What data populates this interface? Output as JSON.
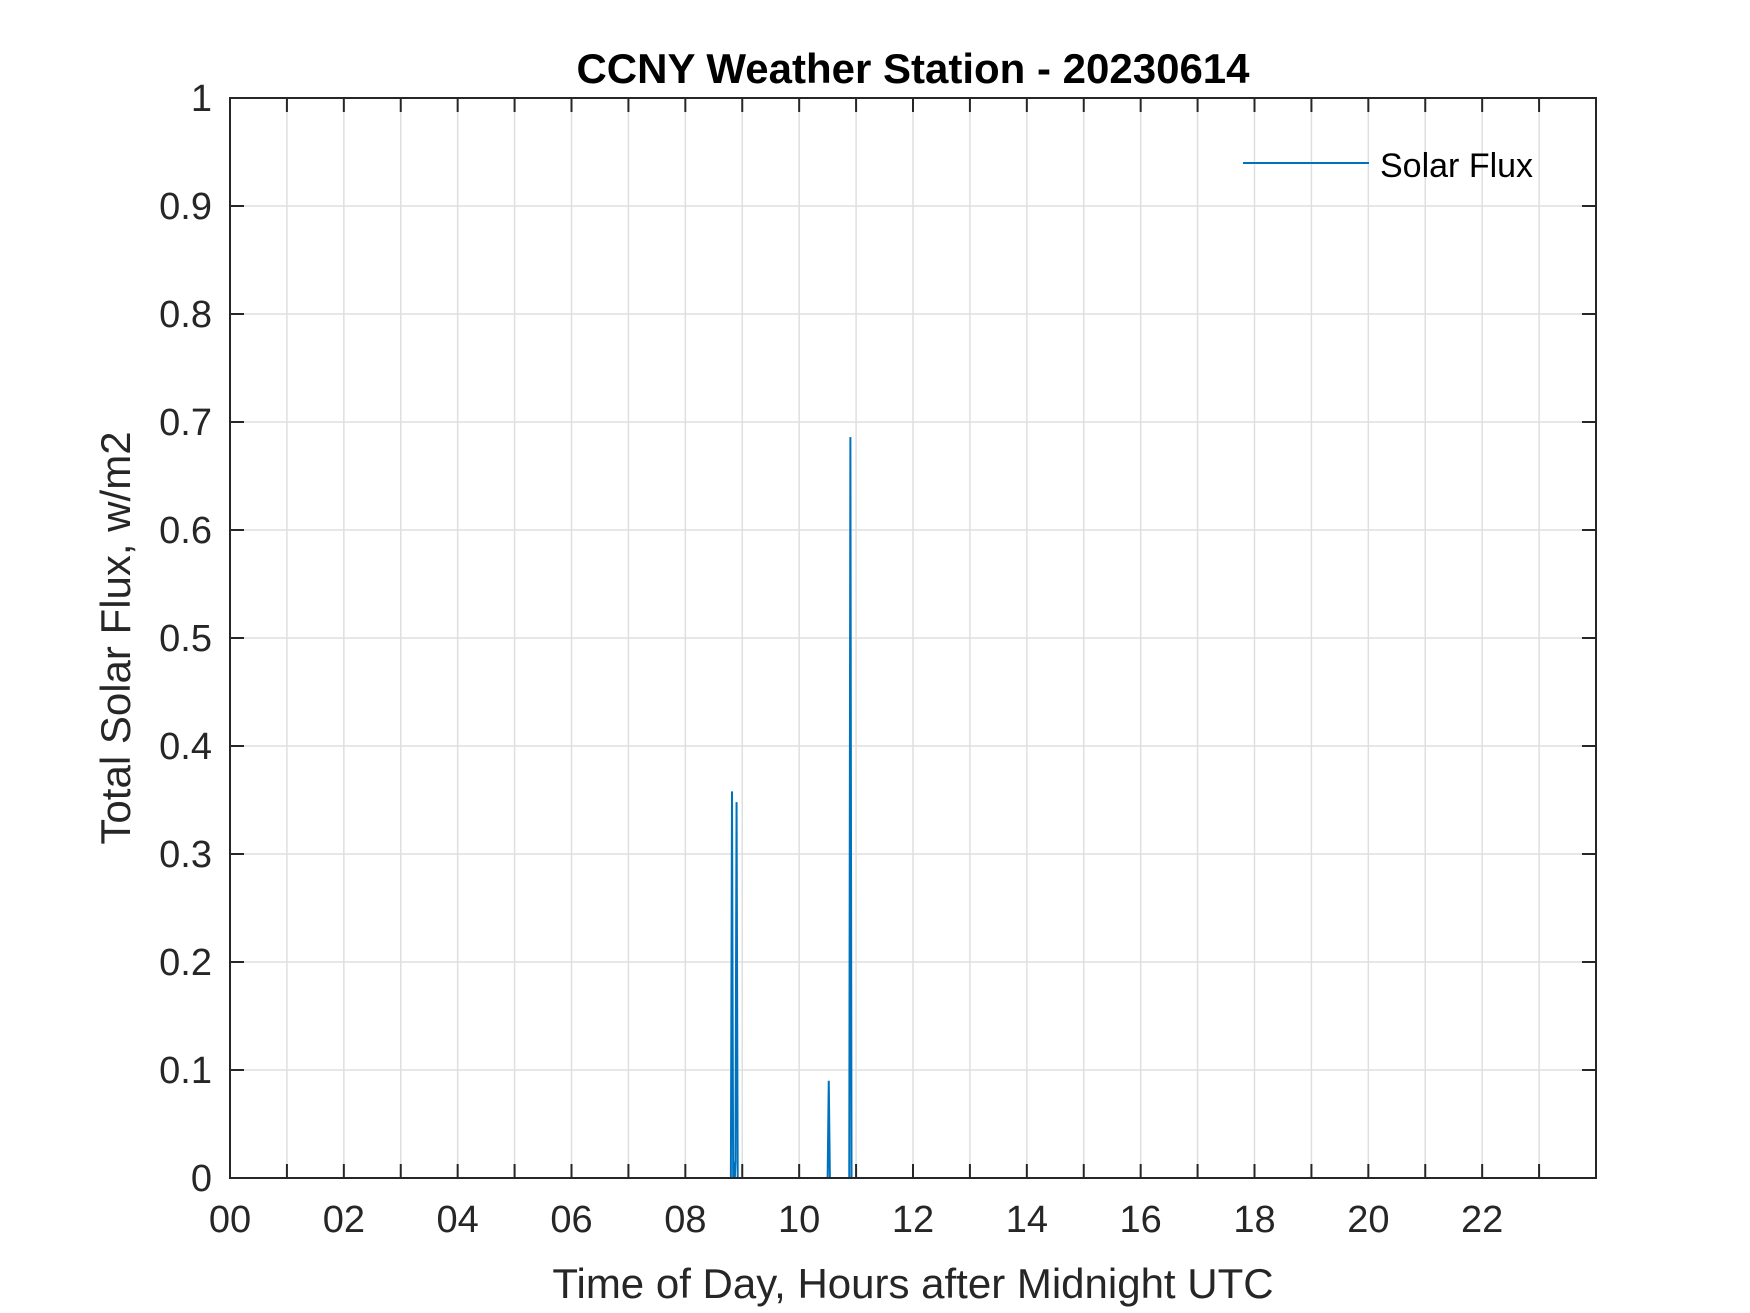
{
  "chart_data": {
    "type": "line",
    "title": "CCNY Weather Station - 20230614",
    "xlabel": "Time of Day, Hours after Midnight UTC",
    "ylabel": "Total Solar Flux, w/m2",
    "xlim": [
      0,
      24
    ],
    "ylim": [
      0,
      1
    ],
    "x_tick_labels": [
      "00",
      "02",
      "04",
      "06",
      "08",
      "10",
      "12",
      "14",
      "16",
      "18",
      "20",
      "22"
    ],
    "y_tick_labels": [
      "0",
      "0.1",
      "0.2",
      "0.3",
      "0.4",
      "0.5",
      "0.6",
      "0.7",
      "0.8",
      "0.9",
      "1"
    ],
    "grid": true,
    "legend_position": "top-right",
    "series": [
      {
        "name": "Solar Flux",
        "color": "#0072BD",
        "points": [
          [
            8.8,
            0
          ],
          [
            8.82,
            0.358
          ],
          [
            8.84,
            0
          ],
          [
            8.85,
            0.015
          ],
          [
            8.87,
            0
          ],
          [
            8.88,
            0.015
          ],
          [
            8.9,
            0.348
          ],
          [
            8.92,
            0
          ],
          [
            10.5,
            0
          ],
          [
            10.52,
            0.09
          ],
          [
            10.54,
            0
          ],
          [
            10.88,
            0
          ],
          [
            10.9,
            0.686
          ],
          [
            10.92,
            0
          ]
        ]
      }
    ]
  }
}
